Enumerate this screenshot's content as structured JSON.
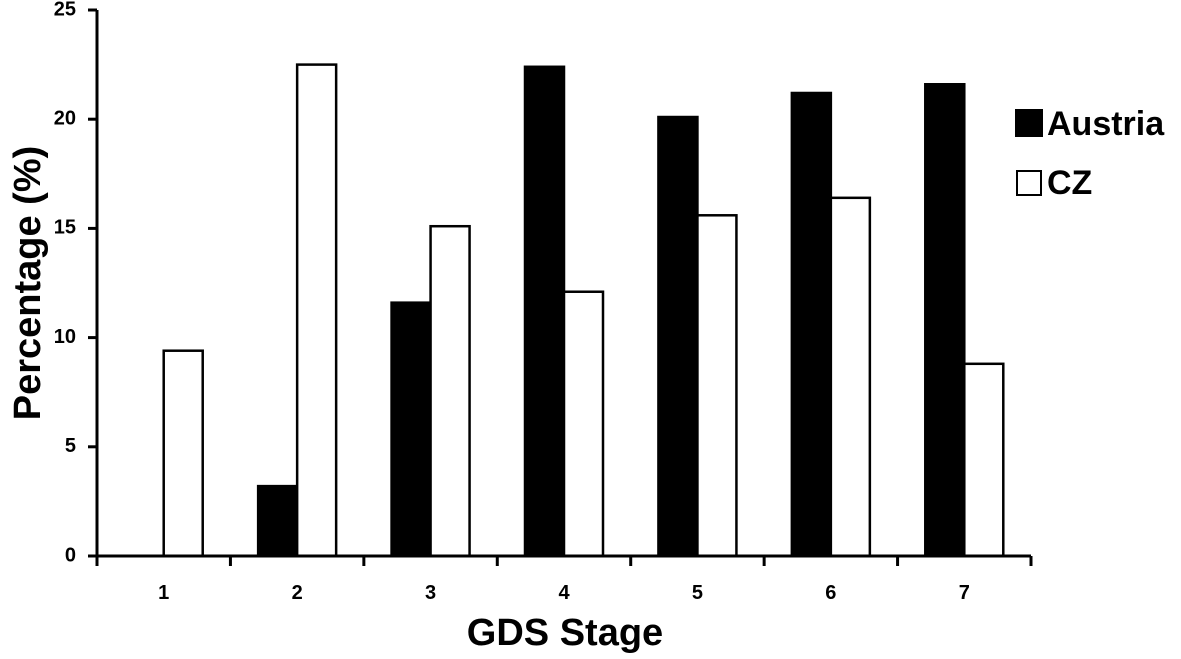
{
  "chart_data": {
    "type": "bar",
    "xlabel": "GDS Stage",
    "ylabel": "Percentage (%)",
    "categories": [
      "1",
      "2",
      "3",
      "4",
      "5",
      "6",
      "7"
    ],
    "ylim": [
      0,
      25
    ],
    "yticks": [
      0,
      5,
      10,
      15,
      20,
      25
    ],
    "grid": false,
    "legend_position": "right",
    "series": [
      {
        "name": "Austria",
        "color": "#000000",
        "fill": "solid",
        "values": [
          0,
          3.2,
          11.6,
          22.4,
          20.1,
          21.2,
          21.6
        ]
      },
      {
        "name": "CZ",
        "color": "#ffffff",
        "fill": "outline",
        "values": [
          9.4,
          22.5,
          15.1,
          12.1,
          15.6,
          16.4,
          8.8
        ]
      }
    ]
  }
}
